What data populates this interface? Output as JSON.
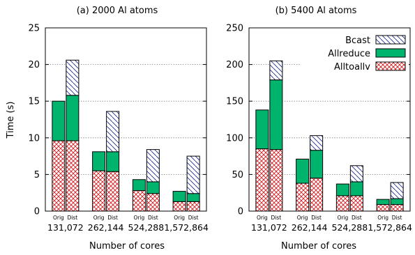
{
  "figure": {
    "ylabel": "Time (s)",
    "bar_labels": [
      "Orig",
      "Dist"
    ],
    "legend": {
      "items": [
        {
          "name": "Bcast",
          "pattern": "diag-stripe",
          "color": "#1a2b8c"
        },
        {
          "name": "Allreduce",
          "pattern": "solid",
          "color": "#00b46e"
        },
        {
          "name": "Alltoallv",
          "pattern": "crosshatch",
          "color": "#d7191c"
        }
      ]
    }
  },
  "chart_data": [
    {
      "type": "bar",
      "stacked": true,
      "title": "(a) 2000 Al atoms",
      "xlabel": "Number of cores",
      "ylabel": "Time (s)",
      "categories": [
        "131,072",
        "262,144",
        "524,288",
        "1,572,864"
      ],
      "bar_labels": [
        "Orig",
        "Dist"
      ],
      "ylim": [
        0,
        25
      ],
      "yticks": [
        0,
        5,
        10,
        15,
        20,
        25
      ],
      "grid": "horizontal dotted",
      "series": [
        {
          "name": "Alltoallv",
          "values": [
            [
              9.6,
              9.6
            ],
            [
              5.5,
              5.4
            ],
            [
              2.8,
              2.4
            ],
            [
              1.3,
              1.3
            ]
          ]
        },
        {
          "name": "Allreduce",
          "values": [
            [
              5.4,
              6.2
            ],
            [
              2.6,
              2.7
            ],
            [
              1.5,
              1.6
            ],
            [
              1.4,
              1.1
            ]
          ]
        },
        {
          "name": "Bcast",
          "values": [
            [
              0.0,
              4.8
            ],
            [
              0.0,
              5.5
            ],
            [
              0.0,
              4.4
            ],
            [
              0.0,
              5.1
            ]
          ]
        }
      ]
    },
    {
      "type": "bar",
      "stacked": true,
      "title": "(b) 5400 Al atoms",
      "xlabel": "Number of cores",
      "ylabel": "",
      "categories": [
        "131,072",
        "262,144",
        "524,288",
        "1,572,864"
      ],
      "bar_labels": [
        "Orig",
        "Dist"
      ],
      "ylim": [
        0,
        250
      ],
      "yticks": [
        0,
        50,
        100,
        150,
        200,
        250
      ],
      "grid": "horizontal dotted",
      "legend_position": "top-right",
      "series": [
        {
          "name": "Alltoallv",
          "values": [
            [
              85,
              84
            ],
            [
              38,
              45
            ],
            [
              21,
              21
            ],
            [
              9,
              9
            ]
          ]
        },
        {
          "name": "Allreduce",
          "values": [
            [
              53,
              95
            ],
            [
              33,
              38
            ],
            [
              16,
              19
            ],
            [
              7,
              8
            ]
          ]
        },
        {
          "name": "Bcast",
          "values": [
            [
              0,
              26
            ],
            [
              0,
              20
            ],
            [
              0,
              22
            ],
            [
              0,
              22
            ]
          ]
        }
      ]
    }
  ]
}
